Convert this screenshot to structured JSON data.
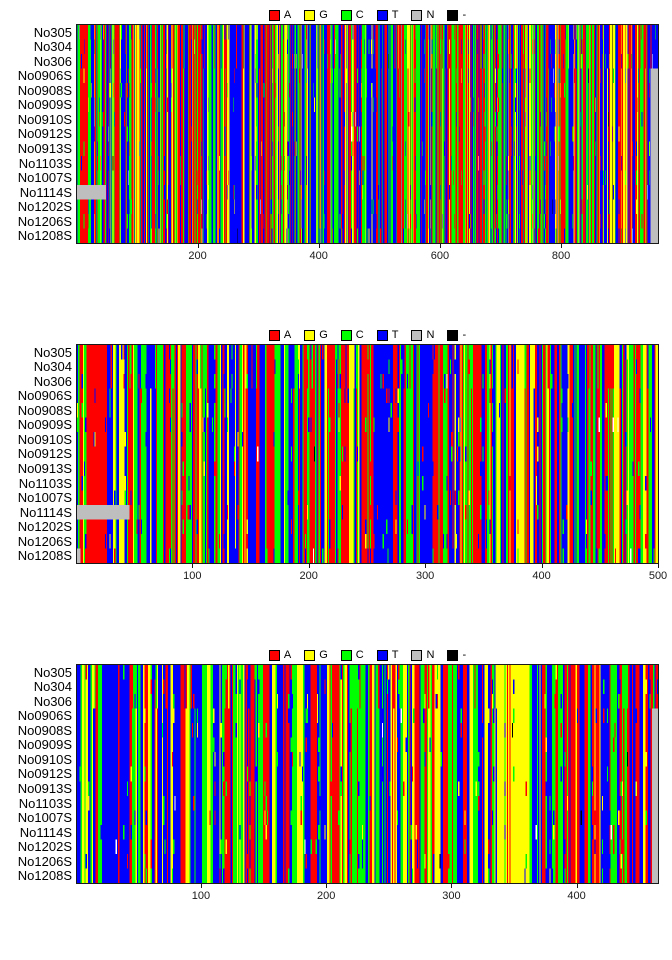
{
  "legend": {
    "items": [
      {
        "label": "A",
        "color": "#ff0000"
      },
      {
        "label": "G",
        "color": "#ffff00"
      },
      {
        "label": "C",
        "color": "#00ff00"
      },
      {
        "label": "T",
        "color": "#0000ff"
      },
      {
        "label": "N",
        "color": "#bebebe"
      },
      {
        "label": "-",
        "color": "#000000"
      }
    ]
  },
  "row_labels": [
    "No305",
    "No304",
    "No306",
    "No0906S",
    "No0908S",
    "No0909S",
    "No0910S",
    "No0912S",
    "No0913S",
    "No1103S",
    "No1007S",
    "No1114S",
    "No1202S",
    "No1206S",
    "No1208S"
  ],
  "chart_data": [
    {
      "type": "heatmap",
      "subtype": "dna-alignment",
      "panel": 1,
      "length": 960,
      "xlim": [
        1,
        960
      ],
      "xticks": [
        200,
        400,
        600,
        800
      ],
      "legend_position": "top-center",
      "grid": false,
      "base_weights": {
        "A": 0.3,
        "G": 0.14,
        "C": 0.24,
        "T": 0.32
      },
      "band_features": [
        {
          "start": 6,
          "end": 18,
          "base": "A"
        },
        {
          "start": 253,
          "end": 270,
          "base": "T"
        },
        {
          "start": 944,
          "end": 960,
          "base": "T"
        }
      ],
      "row_features": [
        {
          "rows": [
            11
          ],
          "start": 1,
          "end": 48,
          "base": "N"
        },
        {
          "rows": [
            3,
            4,
            5,
            6,
            7,
            8,
            9,
            10,
            11,
            12,
            13,
            14
          ],
          "start": 949,
          "end": 960,
          "base": "N"
        }
      ]
    },
    {
      "type": "heatmap",
      "subtype": "dna-alignment",
      "panel": 2,
      "length": 500,
      "xlim": [
        1,
        500
      ],
      "xticks": [
        100,
        200,
        300,
        400,
        500
      ],
      "legend_position": "top-center",
      "grid": false,
      "base_weights": {
        "A": 0.32,
        "G": 0.13,
        "C": 0.25,
        "T": 0.3
      },
      "band_features": [
        {
          "start": 10,
          "end": 26,
          "base": "A"
        },
        {
          "start": 256,
          "end": 272,
          "base": "T"
        },
        {
          "start": 296,
          "end": 306,
          "base": "T"
        }
      ],
      "row_features": [
        {
          "rows": [
            11
          ],
          "start": 1,
          "end": 45,
          "base": "N"
        },
        {
          "rows": [
            14
          ],
          "start": 1,
          "end": 3,
          "base": "N"
        }
      ]
    },
    {
      "type": "heatmap",
      "subtype": "dna-alignment",
      "panel": 3,
      "length": 465,
      "xlim": [
        1,
        465
      ],
      "xticks": [
        100,
        200,
        300,
        400
      ],
      "legend_position": "top-center",
      "grid": false,
      "base_weights": {
        "A": 0.28,
        "G": 0.18,
        "C": 0.28,
        "T": 0.26
      },
      "band_features": [
        {
          "start": 21,
          "end": 33,
          "base": "T"
        },
        {
          "start": 348,
          "end": 362,
          "base": "G"
        }
      ],
      "row_features": [
        {
          "rows": [
            3,
            4,
            5,
            6,
            7,
            8,
            9,
            10,
            11,
            12,
            13,
            14
          ],
          "start": 461,
          "end": 465,
          "base": "N"
        }
      ]
    }
  ],
  "render": {
    "seeds": [
      101,
      202,
      303
    ],
    "alter_prob": 0.26,
    "clade_prob": 0.06,
    "white_prob": 0.018,
    "black_prob": 0.006
  }
}
